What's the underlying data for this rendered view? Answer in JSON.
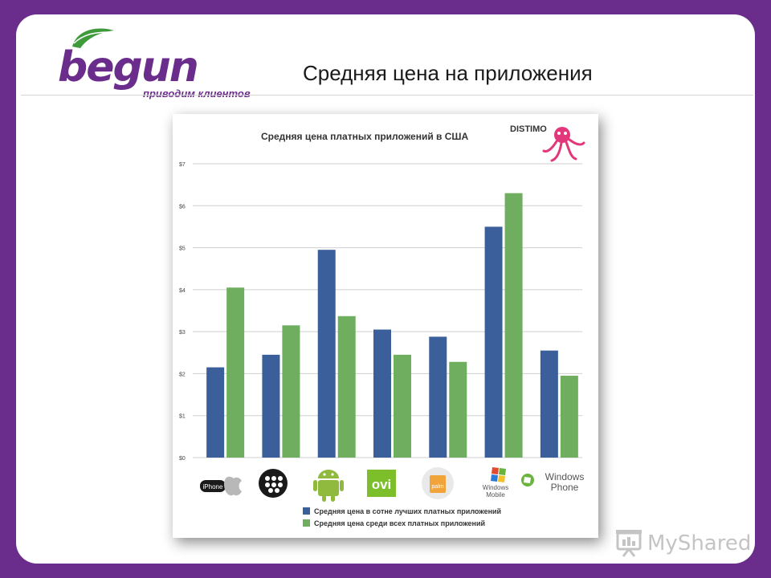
{
  "logo": {
    "word": "begun",
    "tagline": "приводим клиентов"
  },
  "slide_title": "Средняя цена на приложения",
  "watermark": "MyShared",
  "colors": {
    "frame": "#6b2d8c",
    "series_top100": "#3b5f9a",
    "series_all": "#6fae5e",
    "grid": "#cfcfcf"
  },
  "chart_data": {
    "type": "bar",
    "title": "Средняя цена платных приложений в США",
    "brand": "DISTIMO",
    "categories": [
      "iPhone",
      "BlackBerry",
      "Android",
      "ovi",
      "palm",
      "Windows Mobile",
      "Windows Phone"
    ],
    "category_labels": [
      "iPhone",
      "",
      "",
      "ovi",
      "palm",
      "Windows Mobile",
      "Windows Phone"
    ],
    "series": [
      {
        "name": "Средняя цена в сотне лучших платных приложений",
        "color": "#3b5f9a",
        "values": [
          2.15,
          2.45,
          4.95,
          3.05,
          2.88,
          5.5,
          2.55
        ]
      },
      {
        "name": "Средняя цена среди всех платных приложений",
        "color": "#6fae5e",
        "values": [
          4.05,
          3.15,
          3.37,
          2.45,
          2.28,
          6.3,
          1.95
        ]
      }
    ],
    "ylim": [
      0,
      7
    ],
    "yticks": [
      "$0",
      "$1",
      "$2",
      "$3",
      "$4",
      "$5",
      "$6",
      "$7"
    ],
    "grid": true,
    "legend_position": "bottom"
  }
}
